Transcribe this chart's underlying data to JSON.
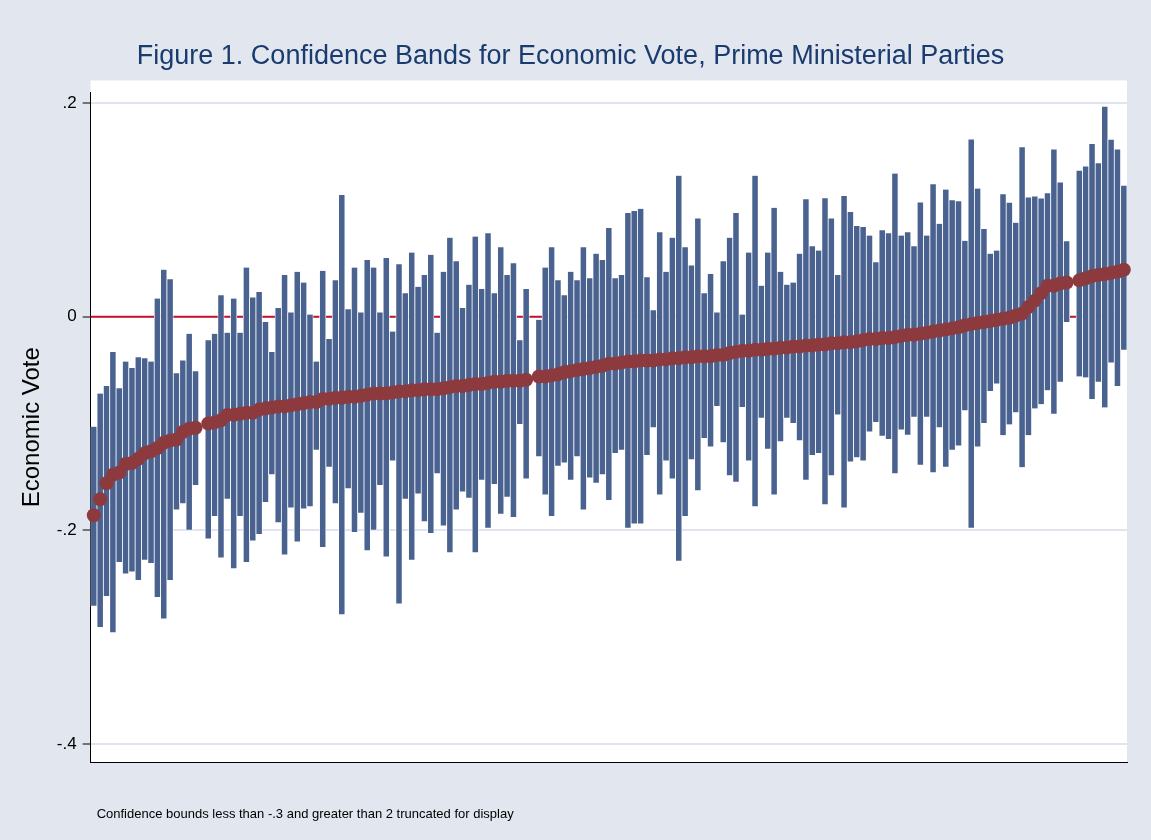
{
  "chart_data": {
    "type": "bar",
    "title": "Figure 1. Confidence Bands for Economic Vote, Prime Ministerial Parties",
    "ylabel": "Economic Vote",
    "annotations": [
      "Confidence bounds less than -.3 and greater than 2 truncated for display"
    ],
    "categories": [
      null,
      null,
      null,
      null,
      null,
      null,
      null,
      null,
      null,
      null,
      null,
      null,
      null,
      null,
      null,
      null,
      null,
      null,
      null,
      null,
      null,
      null,
      null,
      null,
      null,
      null,
      null,
      null,
      null,
      null,
      null,
      null,
      null,
      null,
      null,
      null,
      null,
      null,
      null,
      null,
      null,
      null,
      null,
      null,
      null,
      null,
      null,
      null,
      null,
      null,
      null,
      null,
      null,
      null,
      null,
      null,
      null,
      null,
      null,
      null,
      null,
      null,
      null,
      null,
      null,
      null,
      null,
      null,
      null,
      null,
      null,
      null,
      null,
      null,
      null,
      null,
      null,
      null,
      null,
      null,
      null,
      null,
      null,
      null,
      null,
      null,
      null,
      null,
      null,
      null,
      null,
      null,
      null,
      null,
      null,
      null,
      null,
      null,
      null,
      null,
      null,
      null,
      null,
      null,
      null,
      null,
      null,
      null,
      null,
      null,
      null,
      null,
      null,
      null,
      null,
      null,
      null,
      null,
      null,
      null,
      null,
      null,
      null,
      null,
      null,
      null,
      null,
      null,
      null,
      null,
      null,
      null,
      null,
      null,
      null,
      null,
      null,
      null,
      null,
      null,
      null,
      null,
      null,
      null,
      null,
      null,
      null,
      null,
      null,
      null,
      null,
      null,
      null,
      null,
      null,
      null,
      null,
      null,
      null,
      null,
      null,
      null,
      null
    ],
    "series": [
      {
        "color": "#4a6290",
        "base": [
          -0.271,
          -0.291,
          -0.262,
          -0.296,
          -0.23,
          -0.241,
          -0.239,
          -0.247,
          -0.228,
          -0.231,
          -0.263,
          -0.283,
          -0.247,
          -0.181,
          -0.175,
          -0.2,
          -0.158,
          null,
          -0.208,
          -0.187,
          -0.226,
          -0.171,
          -0.236,
          -0.187,
          -0.23,
          -0.21,
          -0.204,
          -0.174,
          -0.148,
          -0.193,
          -0.223,
          -0.179,
          -0.211,
          -0.18,
          -0.178,
          -0.125,
          -0.216,
          -0.141,
          -0.175,
          -0.279,
          -0.161,
          -0.202,
          -0.184,
          -0.219,
          -0.2,
          -0.158,
          -0.225,
          -0.135,
          -0.269,
          -0.171,
          -0.228,
          -0.166,
          -0.192,
          -0.203,
          -0.147,
          -0.196,
          -0.221,
          -0.181,
          -0.164,
          -0.17,
          -0.221,
          -0.153,
          -0.198,
          -0.157,
          -0.185,
          -0.169,
          -0.188,
          -0.101,
          -0.152,
          null,
          -0.131,
          -0.167,
          -0.187,
          -0.14,
          -0.137,
          -0.153,
          -0.131,
          -0.181,
          -0.151,
          -0.156,
          -0.148,
          -0.172,
          -0.128,
          -0.125,
          -0.198,
          -0.194,
          -0.194,
          -0.13,
          -0.104,
          -0.167,
          -0.135,
          -0.152,
          -0.229,
          -0.187,
          -0.134,
          -0.163,
          -0.114,
          -0.122,
          -0.084,
          -0.118,
          -0.149,
          -0.155,
          -0.085,
          -0.135,
          -0.178,
          -0.095,
          -0.124,
          -0.167,
          -0.117,
          -0.095,
          -0.1,
          -0.116,
          -0.153,
          -0.13,
          -0.128,
          -0.176,
          -0.149,
          -0.092,
          -0.179,
          -0.136,
          -0.132,
          -0.135,
          -0.108,
          -0.099,
          -0.112,
          -0.115,
          -0.147,
          -0.106,
          -0.111,
          -0.094,
          -0.139,
          -0.094,
          -0.146,
          -0.104,
          -0.141,
          -0.125,
          -0.121,
          -0.088,
          -0.198,
          -0.122,
          -0.1,
          -0.07,
          -0.063,
          -0.111,
          -0.101,
          -0.09,
          -0.141,
          -0.111,
          -0.086,
          -0.082,
          -0.069,
          -0.091,
          -0.061,
          -0.005,
          null,
          -0.056,
          -0.057,
          -0.077,
          -0.061,
          -0.085,
          -0.043,
          -0.065,
          -0.031
        ],
        "values": [
          0.168,
          0.219,
          0.197,
          0.263,
          0.163,
          0.199,
          0.191,
          0.209,
          0.189,
          0.189,
          0.28,
          0.327,
          0.282,
          0.128,
          0.134,
          0.184,
          0.107,
          null,
          0.186,
          0.171,
          0.246,
          0.156,
          0.253,
          0.172,
          0.276,
          0.228,
          0.227,
          0.169,
          0.115,
          0.201,
          0.262,
          0.183,
          0.253,
          0.212,
          0.18,
          0.083,
          0.259,
          0.12,
          0.209,
          0.393,
          0.168,
          0.248,
          0.188,
          0.272,
          0.246,
          0.162,
          0.28,
          0.121,
          0.318,
          0.193,
          0.288,
          0.194,
          0.231,
          0.261,
          0.132,
          0.238,
          0.295,
          0.233,
          0.172,
          0.2,
          0.296,
          0.179,
          0.276,
          0.179,
          0.25,
          0.208,
          0.238,
          0.079,
          0.178,
          null,
          0.128,
          0.213,
          0.252,
          0.174,
          0.157,
          0.195,
          0.165,
          0.246,
          0.187,
          0.215,
          0.201,
          0.255,
          0.164,
          0.164,
          0.295,
          0.293,
          0.295,
          0.167,
          0.11,
          0.246,
          0.177,
          0.226,
          0.361,
          0.252,
          0.182,
          0.255,
          0.136,
          0.162,
          0.088,
          0.17,
          0.223,
          0.252,
          0.087,
          0.195,
          0.31,
          0.124,
          0.184,
          0.269,
          0.159,
          0.125,
          0.132,
          0.175,
          0.263,
          0.196,
          0.19,
          0.287,
          0.241,
          0.131,
          0.292,
          0.234,
          0.217,
          0.219,
          0.184,
          0.15,
          0.193,
          0.193,
          0.281,
          0.182,
          0.19,
          0.16,
          0.246,
          0.17,
          0.27,
          0.191,
          0.26,
          0.234,
          0.229,
          0.159,
          0.364,
          0.242,
          0.182,
          0.129,
          0.125,
          0.226,
          0.208,
          0.178,
          0.3,
          0.223,
          0.199,
          0.193,
          0.185,
          0.248,
          0.187,
          0.076,
          null,
          0.193,
          0.198,
          0.239,
          0.205,
          0.282,
          0.209,
          0.222,
          0.154
        ]
      },
      {
        "type": "scatter",
        "color": "#8d3a3e",
        "values": [
          -0.186,
          -0.171,
          -0.156,
          -0.148,
          -0.146,
          -0.138,
          -0.137,
          -0.133,
          -0.128,
          -0.126,
          -0.123,
          -0.118,
          -0.116,
          -0.115,
          -0.108,
          -0.105,
          -0.104,
          null,
          -0.1,
          -0.099,
          -0.097,
          -0.092,
          -0.092,
          -0.091,
          -0.09,
          -0.09,
          -0.087,
          -0.086,
          -0.085,
          -0.084,
          -0.084,
          -0.083,
          -0.082,
          -0.081,
          -0.08,
          -0.08,
          -0.077,
          -0.077,
          -0.076,
          -0.076,
          -0.075,
          -0.075,
          -0.074,
          -0.073,
          -0.072,
          -0.072,
          -0.072,
          -0.071,
          -0.07,
          -0.07,
          -0.069,
          -0.069,
          -0.068,
          -0.068,
          -0.068,
          -0.067,
          -0.066,
          -0.065,
          -0.065,
          -0.064,
          -0.063,
          -0.063,
          -0.062,
          -0.061,
          -0.061,
          -0.06,
          -0.06,
          -0.06,
          -0.059,
          null,
          -0.056,
          -0.056,
          -0.055,
          -0.054,
          -0.052,
          -0.051,
          -0.05,
          -0.049,
          -0.048,
          -0.047,
          -0.046,
          -0.044,
          -0.044,
          -0.043,
          -0.042,
          -0.042,
          -0.041,
          -0.041,
          -0.041,
          -0.04,
          -0.04,
          -0.039,
          -0.039,
          -0.038,
          -0.038,
          -0.037,
          -0.037,
          -0.037,
          -0.036,
          -0.036,
          -0.034,
          -0.033,
          -0.032,
          -0.032,
          -0.031,
          -0.031,
          -0.03,
          -0.03,
          -0.029,
          -0.029,
          -0.028,
          -0.028,
          -0.027,
          -0.027,
          -0.026,
          -0.026,
          -0.025,
          -0.025,
          -0.024,
          -0.024,
          -0.023,
          -0.022,
          -0.021,
          -0.021,
          -0.02,
          -0.02,
          -0.019,
          -0.018,
          -0.017,
          -0.017,
          -0.016,
          -0.015,
          -0.014,
          -0.013,
          -0.012,
          -0.011,
          -0.01,
          -0.008,
          -0.007,
          -0.006,
          -0.005,
          -0.004,
          -0.003,
          -0.002,
          -0.001,
          0.001,
          0.003,
          0.009,
          0.015,
          0.022,
          0.029,
          0.029,
          0.031,
          0.032,
          null,
          0.034,
          0.036,
          0.038,
          0.039,
          0.04,
          0.041,
          0.042,
          0.044
        ]
      }
    ],
    "marker": "circle",
    "ylim": [
      -0.417,
      0.21
    ],
    "yticks": [
      {
        "value": -0.4,
        "label": "-.4"
      },
      {
        "value": -0.2,
        "label": "-.2"
      },
      0,
      {
        "value": 0.2,
        "label": ".2"
      }
    ],
    "grid": "y",
    "tick_labels": "y",
    "ref_lines": [
      {
        "axis": "y",
        "value": 0,
        "color": "#c8102e"
      }
    ]
  }
}
